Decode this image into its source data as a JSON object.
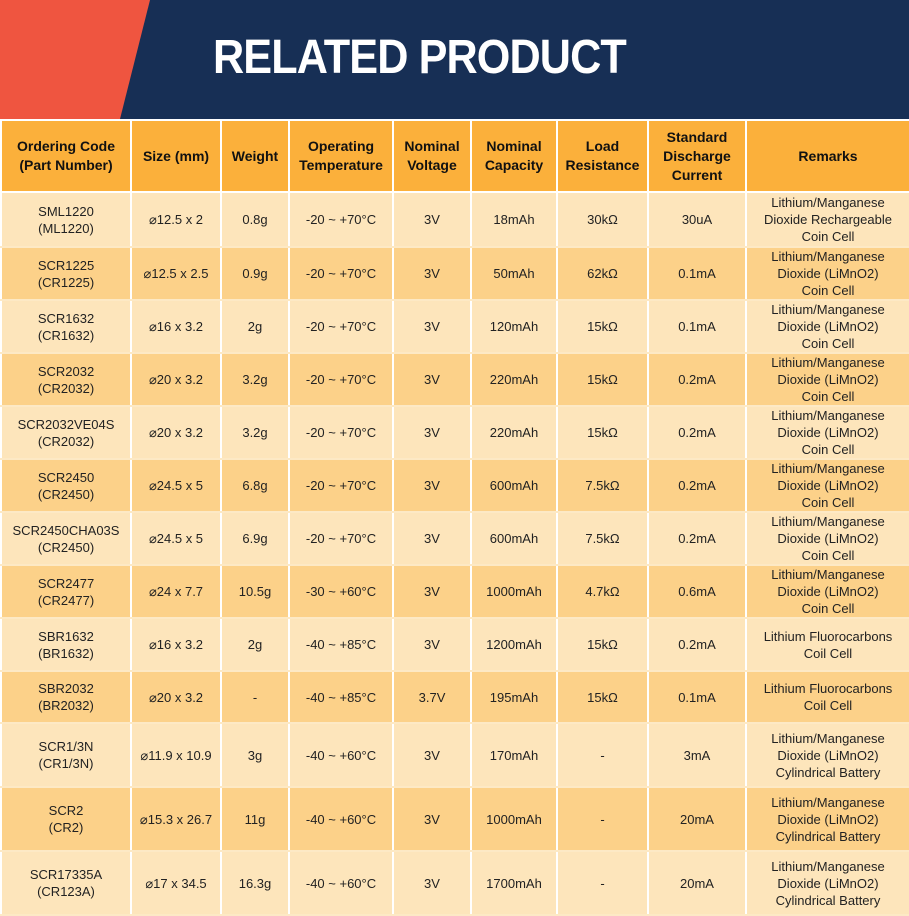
{
  "title": "RELATED PRODUCT",
  "colors": {
    "navy": "#172f55",
    "red": "#ef5540",
    "header": "#fbb03b",
    "row_light": "#fde5bb",
    "row_dark": "#fcd189"
  },
  "columns": [
    "Ordering Code\n(Part Number)",
    "Size (mm)",
    "Weight",
    "Operating\nTemperature",
    "Nominal\nVoltage",
    "Nominal\nCapacity",
    "Load\nResistance",
    "Standard\nDischarge\nCurrent",
    "Remarks"
  ],
  "rows": [
    [
      "SML1220\n(ML1220)",
      "⌀12.5 x 2",
      "0.8g",
      "-20 ~ +70°C",
      "3V",
      "18mAh",
      "30kΩ",
      "30uA",
      "Lithium/Manganese\nDioxide Rechargeable\nCoin Cell"
    ],
    [
      "SCR1225\n(CR1225)",
      "⌀12.5 x 2.5",
      "0.9g",
      "-20 ~ +70°C",
      "3V",
      "50mAh",
      "62kΩ",
      "0.1mA",
      "Lithium/Manganese\nDioxide (LiMnO2)\nCoin Cell"
    ],
    [
      "SCR1632\n(CR1632)",
      "⌀16 x 3.2",
      "2g",
      "-20 ~ +70°C",
      "3V",
      "120mAh",
      "15kΩ",
      "0.1mA",
      "Lithium/Manganese\nDioxide (LiMnO2)\nCoin Cell"
    ],
    [
      "SCR2032\n(CR2032)",
      "⌀20 x 3.2",
      "3.2g",
      "-20 ~ +70°C",
      "3V",
      "220mAh",
      "15kΩ",
      "0.2mA",
      "Lithium/Manganese\nDioxide (LiMnO2)\nCoin Cell"
    ],
    [
      "SCR2032VE04S\n(CR2032)",
      "⌀20 x 3.2",
      "3.2g",
      "-20 ~ +70°C",
      "3V",
      "220mAh",
      "15kΩ",
      "0.2mA",
      "Lithium/Manganese\nDioxide (LiMnO2)\nCoin Cell"
    ],
    [
      "SCR2450\n(CR2450)",
      "⌀24.5 x 5",
      "6.8g",
      "-20 ~ +70°C",
      "3V",
      "600mAh",
      "7.5kΩ",
      "0.2mA",
      "Lithium/Manganese\nDioxide (LiMnO2)\nCoin Cell"
    ],
    [
      "SCR2450CHA03S\n(CR2450)",
      "⌀24.5 x 5",
      "6.9g",
      "-20 ~ +70°C",
      "3V",
      "600mAh",
      "7.5kΩ",
      "0.2mA",
      "Lithium/Manganese\nDioxide (LiMnO2)\nCoin Cell"
    ],
    [
      "SCR2477\n(CR2477)",
      "⌀24 x 7.7",
      "10.5g",
      "-30 ~ +60°C",
      "3V",
      "1000mAh",
      "4.7kΩ",
      "0.6mA",
      "Lithium/Manganese\nDioxide (LiMnO2)\nCoin Cell"
    ],
    [
      "SBR1632\n(BR1632)",
      "⌀16 x 3.2",
      "2g",
      "-40 ~ +85°C",
      "3V",
      "1200mAh",
      "15kΩ",
      "0.2mA",
      "Lithium Fluorocarbons\nCoil Cell"
    ],
    [
      "SBR2032\n(BR2032)",
      "⌀20 x 3.2",
      "-",
      "-40 ~ +85°C",
      "3.7V",
      "195mAh",
      "15kΩ",
      "0.1mA",
      "Lithium Fluorocarbons\nCoil Cell"
    ],
    [
      "SCR1/3N\n(CR1/3N)",
      "⌀11.9 x 10.9",
      "3g",
      "-40 ~ +60°C",
      "3V",
      "170mAh",
      "-",
      "3mA",
      "Lithium/Manganese\nDioxide (LiMnO2)\nCylindrical Battery"
    ],
    [
      "SCR2\n(CR2)",
      "⌀15.3 x 26.7",
      "11g",
      "-40 ~ +60°C",
      "3V",
      "1000mAh",
      "-",
      "20mA",
      "Lithium/Manganese\nDioxide (LiMnO2)\nCylindrical Battery"
    ],
    [
      "SCR17335A\n(CR123A)",
      "⌀17 x 34.5",
      "16.3g",
      "-40 ~ +60°C",
      "3V",
      "1700mAh",
      "-",
      "20mA",
      "Lithium/Manganese\nDioxide (LiMnO2)\nCylindrical Battery"
    ]
  ]
}
